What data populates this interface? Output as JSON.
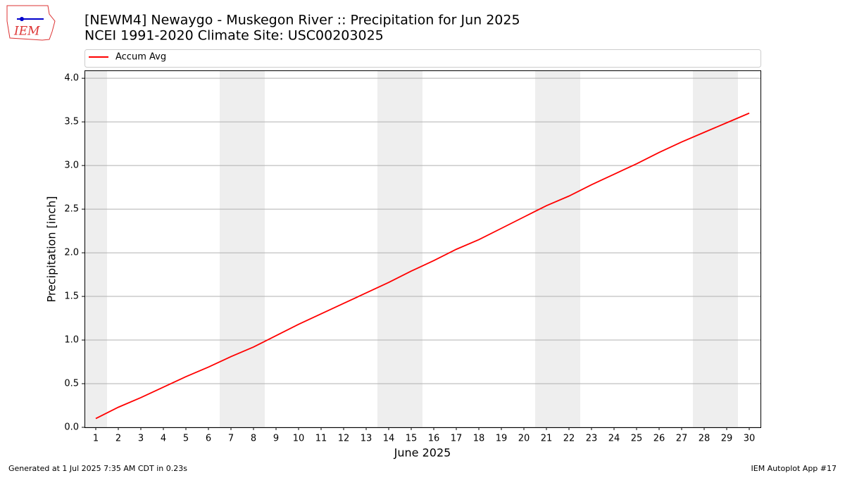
{
  "chart_data": {
    "type": "line",
    "title": "[NEWM4] Newaygo - Muskegon River :: Precipitation for Jun 2025",
    "subtitle": "NCEI 1991-2020 Climate Site: USC00203025",
    "ylabel": "Precipitation [inch]",
    "xlabel": "June 2025",
    "logo": "IEM",
    "footer_left": "Generated at 1 Jul 2025 7:35 AM CDT in 0.23s",
    "footer_right": "IEM Autoplot App #17",
    "x": [
      1,
      2,
      3,
      4,
      5,
      6,
      7,
      8,
      9,
      10,
      11,
      12,
      13,
      14,
      15,
      16,
      17,
      18,
      19,
      20,
      21,
      22,
      23,
      24,
      25,
      26,
      27,
      28,
      29,
      30
    ],
    "series": [
      {
        "name": "Accum Avg",
        "color": "#ff0000",
        "values": [
          0.1,
          0.23,
          0.34,
          0.46,
          0.58,
          0.69,
          0.81,
          0.92,
          1.05,
          1.18,
          1.3,
          1.42,
          1.54,
          1.66,
          1.79,
          1.91,
          2.04,
          2.15,
          2.28,
          2.41,
          2.54,
          2.65,
          2.78,
          2.9,
          3.02,
          3.15,
          3.27,
          3.38,
          3.49,
          3.6
        ]
      }
    ],
    "xlim": [
      0.5,
      30.5
    ],
    "xticks": [
      1,
      2,
      3,
      4,
      5,
      6,
      7,
      8,
      9,
      10,
      11,
      12,
      13,
      14,
      15,
      16,
      17,
      18,
      19,
      20,
      21,
      22,
      23,
      24,
      25,
      26,
      27,
      28,
      29,
      30
    ],
    "ylim": [
      0,
      4.09
    ],
    "yticks": [
      {
        "value": 0,
        "label": "0.0"
      },
      {
        "value": 0.5,
        "label": "0.5"
      },
      {
        "value": 1,
        "label": "1.0"
      },
      {
        "value": 1.5,
        "label": "1.5"
      },
      {
        "value": 2,
        "label": "2.0"
      },
      {
        "value": 2.5,
        "label": "2.5"
      },
      {
        "value": 3,
        "label": "3.0"
      },
      {
        "value": 3.5,
        "label": "3.5"
      },
      {
        "value": 4,
        "label": "4.0"
      }
    ],
    "grid": true
  }
}
